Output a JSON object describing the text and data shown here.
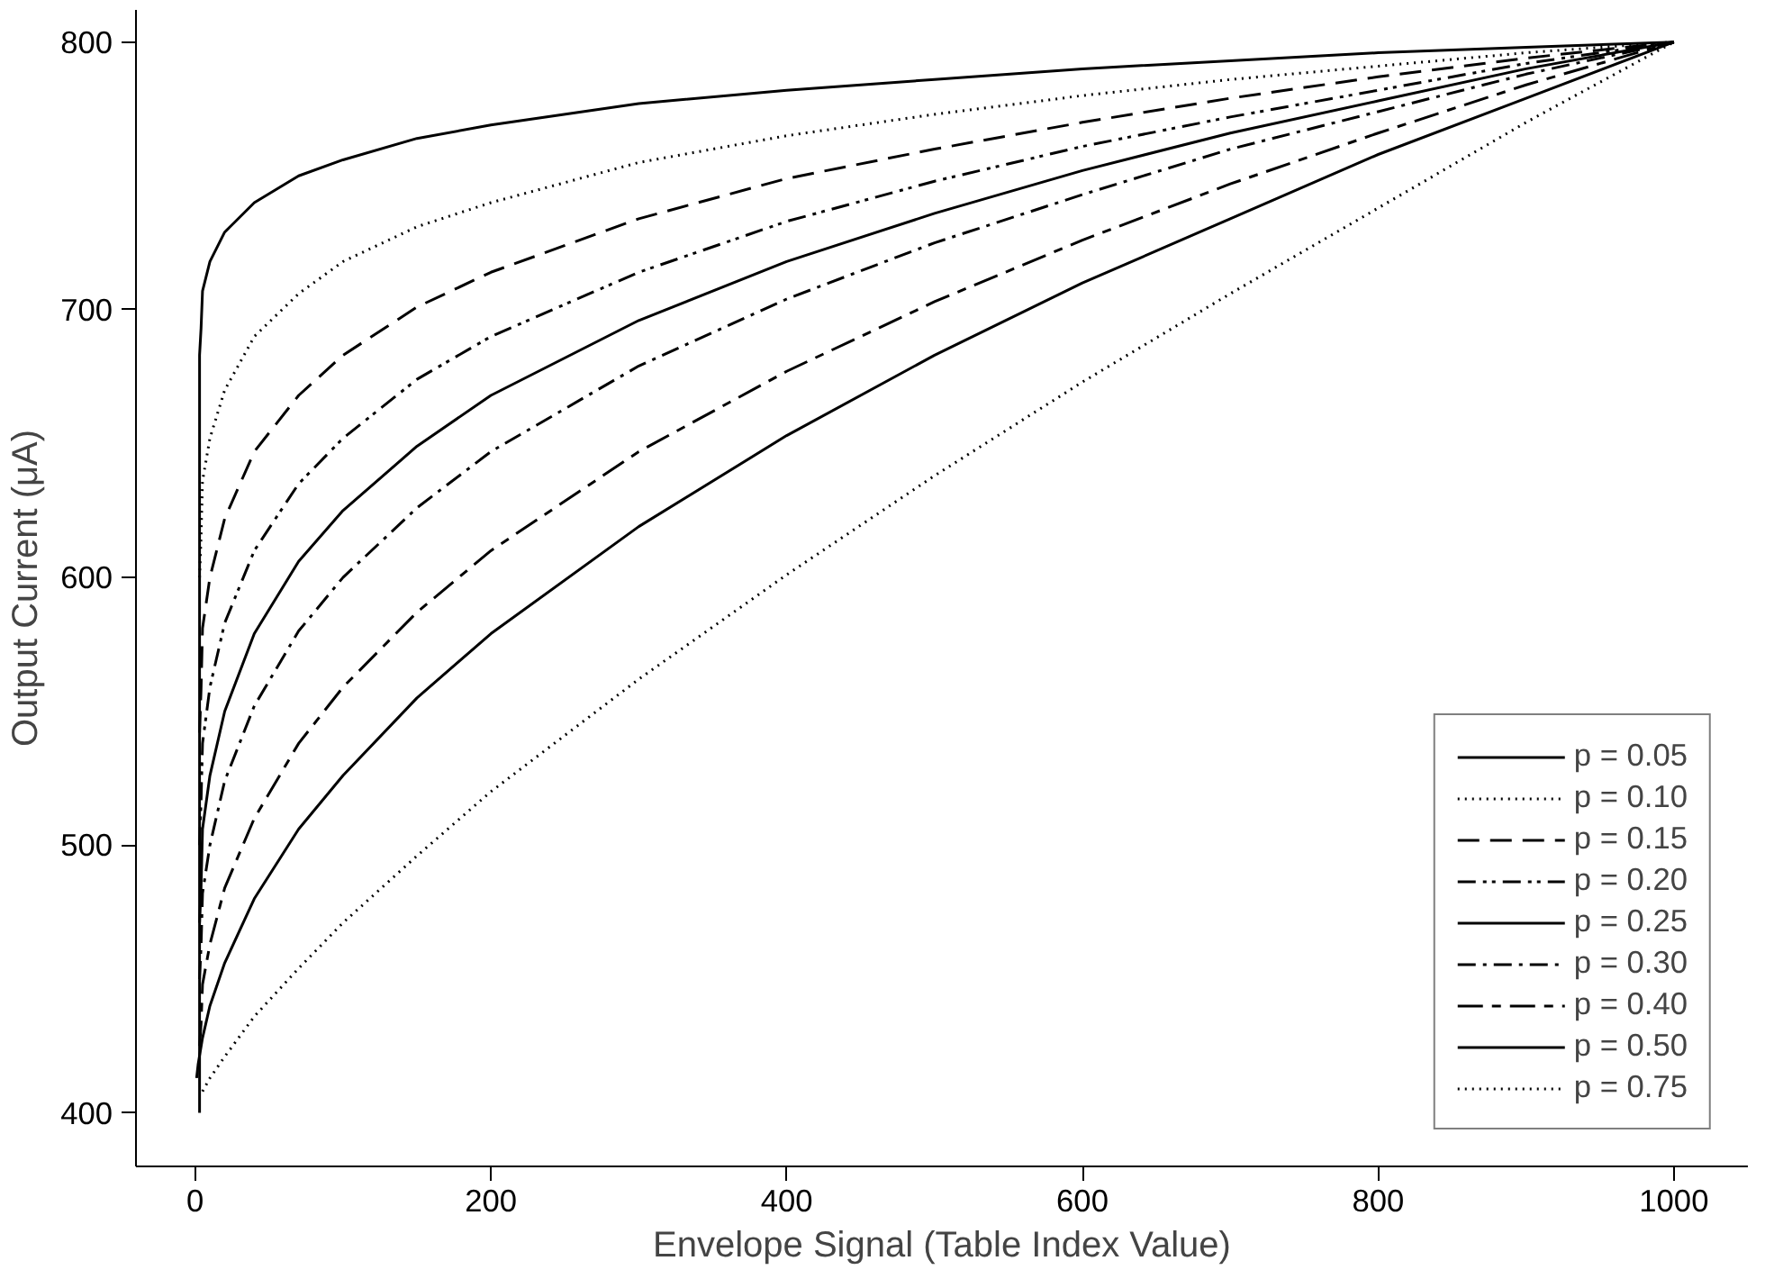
{
  "chart_data": {
    "type": "line",
    "xlabel": "Envelope Signal (Table Index Value)",
    "ylabel": "Output Current (μA)",
    "xlim": [
      -40,
      1050
    ],
    "ylim": [
      380,
      812
    ],
    "xticks": [
      0,
      200,
      400,
      600,
      800,
      1000
    ],
    "yticks": [
      400,
      500,
      600,
      700,
      800
    ],
    "grid": false,
    "legend": "bottom right",
    "series": [
      {
        "name": "p = 0.05",
        "color": "#000000",
        "line_style": "solid",
        "x": [
          3,
          3,
          4,
          5,
          10,
          20,
          40,
          70,
          100,
          150,
          200,
          300,
          400,
          500,
          600,
          700,
          800,
          900,
          1000
        ],
        "values": [
          400,
          683,
          693,
          707,
          718,
          729,
          740,
          750,
          756,
          764,
          769,
          777,
          782,
          786,
          790,
          793,
          796,
          798,
          800
        ]
      },
      {
        "name": "p = 0.10",
        "color": "#000000",
        "line_style": "dotted",
        "x": [
          3,
          4,
          5,
          10,
          20,
          40,
          70,
          100,
          150,
          200,
          300,
          400,
          500,
          600,
          700,
          800,
          900,
          1000
        ],
        "values": [
          600,
          615,
          636,
          652,
          670,
          690,
          706,
          718,
          731,
          740,
          755,
          765,
          773,
          780,
          786,
          791,
          796,
          800
        ]
      },
      {
        "name": "p = 0.15",
        "color": "#000000",
        "line_style": "dashed",
        "x": [
          3,
          4,
          5,
          10,
          20,
          40,
          70,
          100,
          150,
          200,
          300,
          400,
          500,
          600,
          700,
          800,
          900,
          1000
        ],
        "values": [
          542,
          558,
          581,
          600,
          622,
          647,
          668,
          683,
          701,
          714,
          734,
          749,
          760,
          770,
          779,
          787,
          794,
          800
        ]
      },
      {
        "name": "p = 0.20",
        "color": "#000000",
        "line_style": "dashdotdot",
        "x": [
          3,
          4,
          5,
          10,
          20,
          40,
          70,
          100,
          150,
          200,
          300,
          400,
          500,
          600,
          700,
          800,
          900,
          1000
        ],
        "values": [
          500,
          516,
          538,
          559,
          583,
          610,
          635,
          652,
          674,
          690,
          714,
          733,
          748,
          761,
          772,
          782,
          792,
          800
        ]
      },
      {
        "name": "p = 0.25",
        "color": "#000000",
        "line_style": "solid",
        "x": [
          3,
          4,
          5,
          10,
          20,
          40,
          70,
          100,
          150,
          200,
          300,
          400,
          500,
          600,
          700,
          800,
          900,
          1000
        ],
        "values": [
          471,
          484,
          506,
          526,
          550,
          579,
          606,
          625,
          649,
          668,
          696,
          718,
          736,
          752,
          766,
          778,
          790,
          800
        ]
      },
      {
        "name": "p = 0.30",
        "color": "#000000",
        "line_style": "dashdot",
        "x": [
          3,
          4,
          5,
          10,
          20,
          40,
          70,
          100,
          150,
          200,
          300,
          400,
          500,
          600,
          700,
          800,
          900,
          1000
        ],
        "values": [
          450,
          462,
          482,
          500,
          524,
          552,
          580,
          600,
          626,
          647,
          679,
          704,
          725,
          743,
          760,
          774,
          788,
          800
        ]
      },
      {
        "name": "p = 0.40",
        "color": "#000000",
        "line_style": "longdashdash",
        "x": [
          3,
          4,
          5,
          10,
          20,
          40,
          70,
          100,
          150,
          200,
          300,
          400,
          500,
          600,
          700,
          800,
          900,
          1000
        ],
        "values": [
          425,
          433,
          448,
          463,
          484,
          510,
          538,
          559,
          587,
          610,
          647,
          677,
          703,
          726,
          747,
          766,
          784,
          800
        ]
      },
      {
        "name": "p = 0.50",
        "color": "#000000",
        "line_style": "solid",
        "x": [
          1,
          2,
          5,
          10,
          20,
          40,
          70,
          100,
          150,
          200,
          300,
          400,
          500,
          600,
          700,
          800,
          900,
          1000
        ],
        "values": [
          413,
          418,
          428,
          440,
          456,
          480,
          506,
          526,
          555,
          579,
          619,
          653,
          683,
          710,
          734,
          758,
          779,
          800
        ]
      },
      {
        "name": "p = 0.75",
        "color": "#000000",
        "line_style": "dotted",
        "x": [
          5,
          10,
          20,
          40,
          70,
          100,
          150,
          200,
          300,
          400,
          500,
          600,
          700,
          800,
          900,
          1000
        ],
        "values": [
          408,
          413,
          421,
          436,
          454,
          471,
          496,
          520,
          562,
          601,
          638,
          673,
          706,
          738,
          770,
          800
        ]
      }
    ]
  }
}
